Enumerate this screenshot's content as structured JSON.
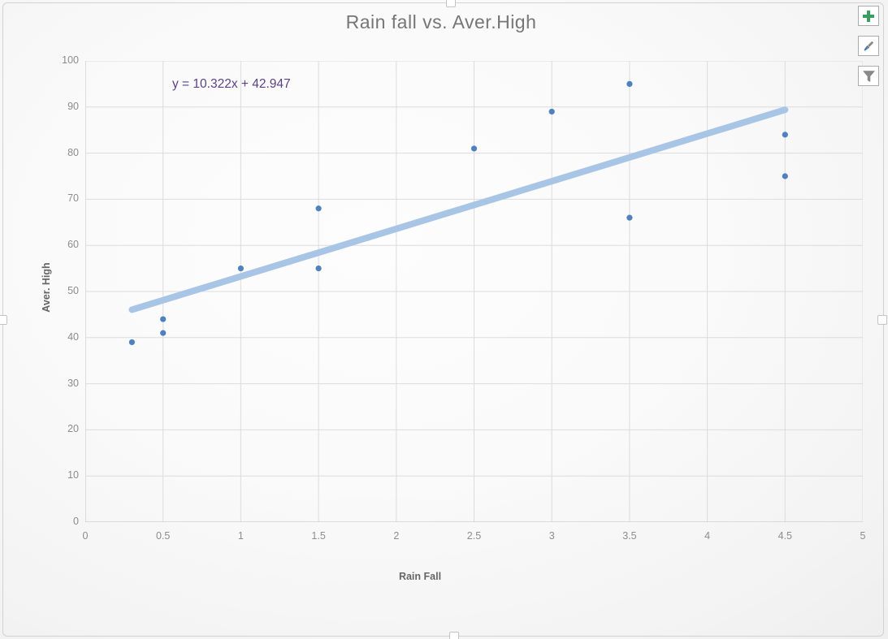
{
  "chart_data": {
    "type": "scatter",
    "title": "Rain fall vs. Aver.High",
    "xlabel": "Rain Fall",
    "ylabel": "Aver. High",
    "xlim": [
      0,
      5
    ],
    "ylim": [
      0,
      100
    ],
    "x_ticks": [
      "0",
      "0.5",
      "1",
      "1.5",
      "2",
      "2.5",
      "3",
      "3.5",
      "4",
      "4.5",
      "5"
    ],
    "y_ticks": [
      "0",
      "10",
      "20",
      "30",
      "40",
      "50",
      "60",
      "70",
      "80",
      "90",
      "100"
    ],
    "grid": true,
    "legend": "none",
    "series": [
      {
        "name": "Aver. High",
        "points": [
          [
            0.3,
            39
          ],
          [
            0.5,
            44
          ],
          [
            0.5,
            41
          ],
          [
            1.0,
            55
          ],
          [
            1.5,
            68
          ],
          [
            1.5,
            55
          ],
          [
            2.5,
            81
          ],
          [
            3.0,
            89
          ],
          [
            3.5,
            95
          ],
          [
            3.5,
            66
          ],
          [
            4.5,
            84
          ],
          [
            4.5,
            75
          ]
        ]
      }
    ],
    "trendline": {
      "equation_label": "y = 10.322x + 42.947",
      "slope": 10.322,
      "intercept": 42.947,
      "x_start": 0.3,
      "x_end": 4.5
    }
  },
  "colors": {
    "point": "#4e81bd",
    "trendline": "#a8c5e6",
    "equation_text": "#5b4188",
    "title_text": "#767676",
    "gridline": "#dcdcdc",
    "axis_line": "#bfbfbf",
    "tick_text": "#8c8c8c",
    "axis_title_text": "#666666",
    "plus_icon": "#38a05f",
    "brush_handle": "#8a8a8a",
    "brush_tip": "#3a78b8",
    "filter_icon": "#8a8a8a"
  },
  "toolbar": {
    "chart_elements_button": "Chart Elements",
    "chart_styles_button": "Chart Styles",
    "chart_filters_button": "Chart Filters"
  }
}
